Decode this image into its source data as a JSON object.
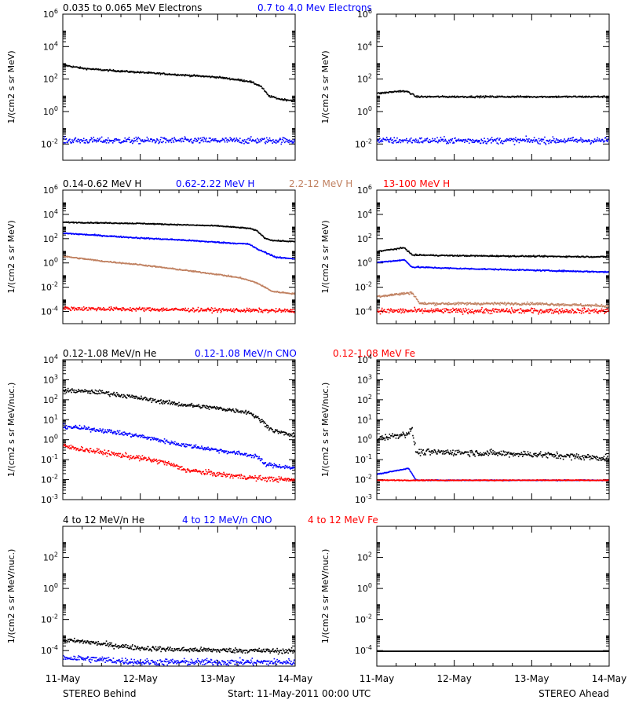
{
  "footer": {
    "left": "STEREO Behind",
    "center": "Start: 11-May-2011 00:00 UTC",
    "right": "STEREO Ahead"
  },
  "x_axis": {
    "tick_labels": [
      "11-May",
      "12-May",
      "13-May",
      "14-May"
    ],
    "range_days": [
      0,
      3
    ]
  },
  "chart_data": [
    {
      "id": "electrons",
      "type": "scatter",
      "log_y": true,
      "ylabel": "1/(cm2 s sr MeV)",
      "ylim_exp": [
        -3,
        6
      ],
      "ytick_exps": [
        -2,
        0,
        2,
        4,
        6
      ],
      "legend": [
        {
          "text": "0.035 to 0.065 MeV Electrons",
          "color": "#000000"
        },
        {
          "text": "0.7 to 4.0 Mev Electrons",
          "color": "#0000ff"
        }
      ],
      "behind": {
        "series": [
          {
            "name": "0.035 to 0.065 MeV Electrons",
            "color": "#000000",
            "days": [
              0,
              0.25,
              0.5,
              1.0,
              1.5,
              2.0,
              2.4,
              2.55,
              2.65,
              2.8,
              3.0
            ],
            "log10": [
              2.9,
              2.7,
              2.6,
              2.45,
              2.3,
              2.15,
              1.9,
              1.6,
              1.0,
              0.8,
              0.7
            ],
            "noise": 0.05
          },
          {
            "name": "0.7 to 4.0 Mev Electrons",
            "color": "#0000ff",
            "days": [
              0,
              3.0
            ],
            "log10": [
              -1.75,
              -1.75
            ],
            "noise": 0.18
          }
        ]
      },
      "ahead": {
        "series": [
          {
            "name": "0.035 to 0.065 MeV Electrons",
            "color": "#000000",
            "days": [
              0,
              0.3,
              0.4,
              0.5,
              1.0,
              2.0,
              3.0
            ],
            "log10": [
              1.15,
              1.3,
              1.25,
              0.95,
              0.95,
              0.95,
              0.95
            ],
            "noise": 0.05
          },
          {
            "name": "0.7 to 4.0 Mev Electrons",
            "color": "#0000ff",
            "days": [
              0,
              3.0
            ],
            "log10": [
              -1.75,
              -1.75
            ],
            "noise": 0.18
          }
        ]
      }
    },
    {
      "id": "protons",
      "type": "scatter",
      "log_y": true,
      "ylabel": "1/(cm2 s sr MeV)",
      "ylim_exp": [
        -5,
        6
      ],
      "ytick_exps": [
        -4,
        -2,
        0,
        2,
        4,
        6
      ],
      "legend": [
        {
          "text": "0.14-0.62 MeV H",
          "color": "#000000"
        },
        {
          "text": "0.62-2.22 MeV H",
          "color": "#0000ff"
        },
        {
          "text": "2.2-12 MeV H",
          "color": "#c08060"
        },
        {
          "text": "13-100 MeV H",
          "color": "#ff0000"
        }
      ],
      "behind": {
        "series": [
          {
            "name": "0.14-0.62 MeV H",
            "color": "#000000",
            "days": [
              0,
              0.5,
              1.0,
              1.5,
              2.0,
              2.4,
              2.5,
              2.6,
              2.7,
              3.0
            ],
            "log10": [
              3.4,
              3.35,
              3.3,
              3.2,
              3.1,
              2.9,
              2.7,
              2.1,
              1.9,
              1.8
            ],
            "noise": 0.04
          },
          {
            "name": "0.62-2.22 MeV H",
            "color": "#0000ff",
            "days": [
              0,
              0.5,
              1.0,
              1.5,
              2.0,
              2.4,
              2.5,
              2.65,
              2.75,
              3.0
            ],
            "log10": [
              2.5,
              2.3,
              2.1,
              1.95,
              1.75,
              1.6,
              1.2,
              0.8,
              0.5,
              0.4
            ],
            "noise": 0.05
          },
          {
            "name": "2.2-12 MeV H",
            "color": "#c08060",
            "days": [
              0,
              0.5,
              1.0,
              1.5,
              2.0,
              2.3,
              2.5,
              2.7,
              3.0
            ],
            "log10": [
              0.6,
              0.2,
              -0.1,
              -0.5,
              -0.9,
              -1.2,
              -1.6,
              -2.3,
              -2.5
            ],
            "noise": 0.05
          },
          {
            "name": "13-100 MeV H",
            "color": "#ff0000",
            "days": [
              0,
              3.0
            ],
            "log10": [
              -3.7,
              -3.9
            ],
            "noise": 0.15
          }
        ]
      },
      "ahead": {
        "series": [
          {
            "name": "0.14-0.62 MeV H",
            "color": "#000000",
            "days": [
              0,
              0.35,
              0.45,
              0.55,
              1.0,
              2.0,
              3.0
            ],
            "log10": [
              1.0,
              1.3,
              0.7,
              0.7,
              0.65,
              0.6,
              0.55
            ],
            "noise": 0.05
          },
          {
            "name": "0.62-2.22 MeV H",
            "color": "#0000ff",
            "days": [
              0,
              0.35,
              0.45,
              0.55,
              1.0,
              2.0,
              3.0
            ],
            "log10": [
              0.1,
              0.3,
              -0.3,
              -0.3,
              -0.4,
              -0.55,
              -0.7
            ],
            "noise": 0.05
          },
          {
            "name": "2.2-12 MeV H",
            "color": "#c08060",
            "days": [
              0,
              0.45,
              0.55,
              1.0,
              2.0,
              3.0
            ],
            "log10": [
              -2.7,
              -2.4,
              -3.3,
              -3.3,
              -3.3,
              -3.5
            ],
            "noise": 0.1
          },
          {
            "name": "13-100 MeV H",
            "color": "#ff0000",
            "days": [
              0,
              3.0
            ],
            "log10": [
              -3.9,
              -3.9
            ],
            "noise": 0.2
          }
        ]
      }
    },
    {
      "id": "heavy-low",
      "type": "scatter",
      "log_y": true,
      "ylabel": "1/(cm2 s sr MeV/nuc.)",
      "ylim_exp": [
        -3,
        4
      ],
      "ytick_exps": [
        -3,
        -2,
        -1,
        0,
        1,
        2,
        3,
        4
      ],
      "legend": [
        {
          "text": "0.12-1.08 MeV/n He",
          "color": "#000000"
        },
        {
          "text": "0.12-1.08 MeV/n CNO",
          "color": "#0000ff"
        },
        {
          "text": "0.12-1.08 MeV Fe",
          "color": "#ff0000"
        }
      ],
      "behind": {
        "series": [
          {
            "name": "0.12-1.08 MeV/n He",
            "color": "#000000",
            "days": [
              0,
              0.5,
              1.0,
              1.5,
              2.0,
              2.4,
              2.55,
              2.7,
              3.0
            ],
            "log10": [
              2.5,
              2.4,
              2.1,
              1.8,
              1.6,
              1.4,
              1.0,
              0.5,
              0.2
            ],
            "noise": 0.1
          },
          {
            "name": "0.12-1.08 MeV/n CNO",
            "color": "#0000ff",
            "days": [
              0,
              0.5,
              1.0,
              1.5,
              2.0,
              2.5,
              2.6,
              3.0
            ],
            "log10": [
              0.7,
              0.5,
              0.2,
              -0.2,
              -0.5,
              -0.8,
              -1.2,
              -1.4
            ],
            "noise": 0.1
          },
          {
            "name": "0.12-1.08 MeV Fe",
            "color": "#ff0000",
            "days": [
              0,
              0.5,
              1.0,
              1.3,
              1.6,
              2.0,
              2.5,
              3.0
            ],
            "log10": [
              -0.3,
              -0.6,
              -0.9,
              -1.1,
              -1.5,
              -1.7,
              -1.9,
              -2.0
            ],
            "noise": 0.12
          }
        ]
      },
      "ahead": {
        "series": [
          {
            "name": "0.12-1.08 MeV/n He",
            "color": "#000000",
            "days": [
              0,
              0.35,
              0.45,
              0.5,
              1.0,
              2.0,
              3.0
            ],
            "log10": [
              0.1,
              0.3,
              0.5,
              -0.6,
              -0.6,
              -0.7,
              -0.9
            ],
            "noise": 0.15
          },
          {
            "name": "0.12-1.08 MeV/n CNO",
            "color": "#0000ff",
            "days": [
              0,
              0.4,
              0.5,
              3.0
            ],
            "log10": [
              -1.7,
              -1.4,
              -2.0,
              -2.0
            ],
            "noise": 0.02
          },
          {
            "name": "0.12-1.08 MeV Fe",
            "color": "#ff0000",
            "days": [
              0,
              3.0
            ],
            "log10": [
              -2.0,
              -2.0
            ],
            "noise": 0.02
          }
        ]
      }
    },
    {
      "id": "heavy-high",
      "type": "scatter",
      "log_y": true,
      "ylabel": "1/(cm2 s sr MeV/nuc.)",
      "ylim_exp": [
        -5,
        4
      ],
      "ytick_exps": [
        -4,
        -2,
        0,
        2
      ],
      "legend": [
        {
          "text": "4 to 12 MeV/n He",
          "color": "#000000"
        },
        {
          "text": "4 to 12 MeV/n CNO",
          "color": "#0000ff"
        },
        {
          "text": "4 to 12 MeV Fe",
          "color": "#ff0000"
        }
      ],
      "behind": {
        "series": [
          {
            "name": "4 to 12 MeV/n He",
            "color": "#000000",
            "days": [
              0,
              0.3,
              0.6,
              1.0,
              1.5,
              3.0
            ],
            "log10": [
              -3.3,
              -3.4,
              -3.6,
              -3.8,
              -3.9,
              -4.0
            ],
            "noise": 0.15
          },
          {
            "name": "4 to 12 MeV/n CNO",
            "color": "#0000ff",
            "days": [
              0,
              1.0
            ],
            "log10": [
              -4.4,
              -4.7
            ],
            "noise": 0.2
          }
        ]
      },
      "ahead": {
        "series": [
          {
            "name": "4 to 12 MeV/n He",
            "color": "#000000",
            "days": [
              0,
              3.0
            ],
            "log10": [
              -4.0,
              -4.0
            ],
            "noise": 0.0
          }
        ]
      }
    }
  ]
}
